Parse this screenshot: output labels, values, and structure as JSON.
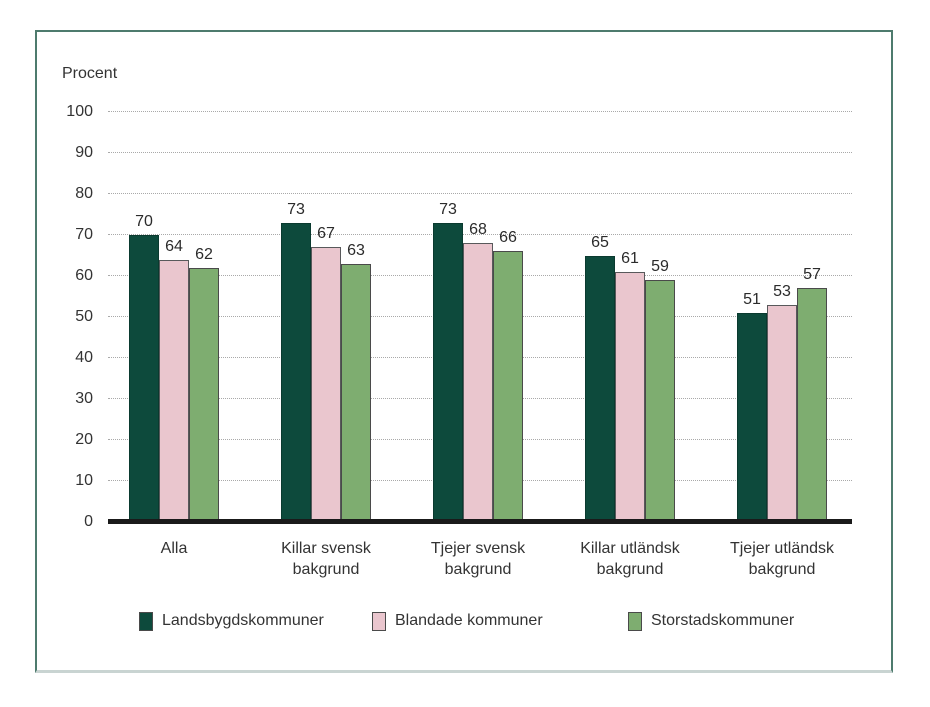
{
  "page": {
    "background": "#ffffff",
    "frame_border_color": "#4e7b6d",
    "frame_bottom_border_color": "#c9d4d2"
  },
  "chart_data": {
    "type": "bar",
    "title": "Procent",
    "ylabel": "Procent",
    "xlabel": "",
    "ylim": [
      0,
      100
    ],
    "ytick_step": 10,
    "yticks": [
      0,
      10,
      20,
      30,
      40,
      50,
      60,
      70,
      80,
      90,
      100
    ],
    "grid": "horizontal-dotted",
    "gridline_color": "#a9a9a9",
    "axis_line_color": "#1a1a1a",
    "text_color": "#333333",
    "show_value_labels": true,
    "legend_position": "bottom",
    "categories": [
      "Alla",
      "Killar svensk bakgrund",
      "Tjejer svensk bakgrund",
      "Killar utländsk bakgrund",
      "Tjejer utländsk bakgrund"
    ],
    "series": [
      {
        "name": "Landsbygdskommuner",
        "color": "#0d4a3c",
        "border_color": "#0a3a2f",
        "values": [
          70,
          73,
          73,
          65,
          51
        ]
      },
      {
        "name": "Blandade kommuner",
        "color": "#eac6ce",
        "border_color": "#58595b",
        "values": [
          64,
          67,
          68,
          61,
          53
        ]
      },
      {
        "name": "Storstadskommuner",
        "color": "#7ead70",
        "border_color": "#4a4a4a",
        "values": [
          62,
          63,
          66,
          59,
          57
        ]
      }
    ]
  }
}
